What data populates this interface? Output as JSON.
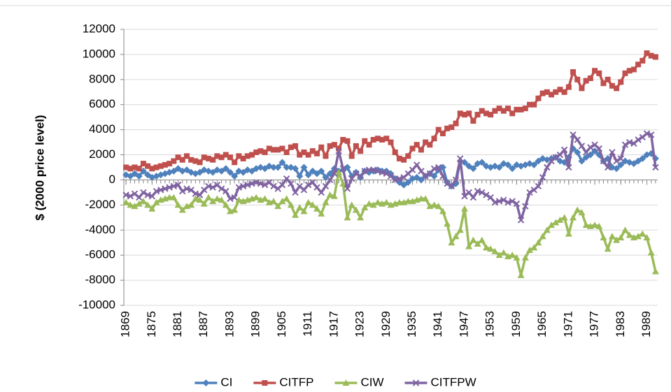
{
  "chart_data": {
    "type": "line",
    "y_label": "$ (2000 price level)",
    "x": [
      1869,
      1870,
      1871,
      1872,
      1873,
      1874,
      1875,
      1876,
      1877,
      1878,
      1879,
      1880,
      1881,
      1882,
      1883,
      1884,
      1885,
      1886,
      1887,
      1888,
      1889,
      1890,
      1891,
      1892,
      1893,
      1894,
      1895,
      1896,
      1897,
      1898,
      1899,
      1900,
      1901,
      1902,
      1903,
      1904,
      1905,
      1906,
      1907,
      1908,
      1909,
      1910,
      1911,
      1912,
      1913,
      1914,
      1915,
      1916,
      1917,
      1918,
      1919,
      1920,
      1921,
      1922,
      1923,
      1924,
      1925,
      1926,
      1927,
      1928,
      1929,
      1930,
      1931,
      1932,
      1933,
      1934,
      1935,
      1936,
      1937,
      1938,
      1939,
      1940,
      1941,
      1942,
      1943,
      1944,
      1945,
      1946,
      1947,
      1948,
      1949,
      1950,
      1951,
      1952,
      1953,
      1954,
      1955,
      1956,
      1957,
      1958,
      1959,
      1960,
      1961,
      1962,
      1963,
      1964,
      1965,
      1966,
      1967,
      1968,
      1969,
      1970,
      1971,
      1972,
      1973,
      1974,
      1975,
      1976,
      1977,
      1978,
      1979,
      1980,
      1981,
      1982,
      1983,
      1984,
      1985,
      1986,
      1987,
      1988,
      1989,
      1990,
      1991
    ],
    "xlim": [
      1868.5,
      1991.5
    ],
    "xticks": [
      1869,
      1875,
      1881,
      1887,
      1893,
      1899,
      1905,
      1911,
      1917,
      1923,
      1929,
      1935,
      1941,
      1947,
      1953,
      1959,
      1965,
      1971,
      1977,
      1983,
      1989
    ],
    "ylim": [
      -10000,
      12000
    ],
    "yticks": [
      -10000,
      -8000,
      -6000,
      -4000,
      -2000,
      0,
      2000,
      4000,
      6000,
      8000,
      10000,
      12000
    ],
    "grid": true,
    "legend": "bottom",
    "series": [
      {
        "name": "CI",
        "color": "#4f81bd",
        "marker": "diamond",
        "values": [
          400,
          300,
          500,
          300,
          700,
          400,
          200,
          300,
          400,
          500,
          600,
          700,
          900,
          700,
          800,
          600,
          500,
          600,
          800,
          700,
          600,
          800,
          700,
          900,
          600,
          300,
          700,
          600,
          800,
          700,
          900,
          1000,
          900,
          1100,
          1000,
          1000,
          1400,
          1000,
          1000,
          900,
          300,
          1000,
          400,
          700,
          500,
          700,
          200,
          500,
          900,
          700,
          800,
          1000,
          300,
          600,
          200,
          700,
          600,
          700,
          800,
          700,
          700,
          500,
          100,
          -200,
          -400,
          -200,
          100,
          200,
          0,
          300,
          500,
          300,
          800,
          1000,
          -200,
          -500,
          -300,
          1500,
          1400,
          1100,
          900,
          1300,
          1400,
          1100,
          1000,
          1100,
          1000,
          1300,
          1200,
          900,
          1200,
          1100,
          1200,
          1300,
          1200,
          1500,
          1700,
          1600,
          1700,
          1800,
          1500,
          1400,
          1800,
          2500,
          2200,
          1500,
          1800,
          2000,
          2300,
          2000,
          1500,
          1700,
          1000,
          900,
          1200,
          1500,
          1400,
          1300,
          1500,
          1700,
          2000,
          2100,
          1700
        ]
      },
      {
        "name": "CITFP",
        "color": "#c0504d",
        "marker": "square",
        "values": [
          1000,
          900,
          1000,
          900,
          1300,
          1100,
          900,
          1000,
          1100,
          1200,
          1300,
          1500,
          1800,
          1600,
          1900,
          1600,
          1500,
          1400,
          1800,
          1700,
          1600,
          1900,
          1800,
          2000,
          1800,
          1400,
          1900,
          1700,
          1900,
          2000,
          2200,
          2300,
          2200,
          2500,
          2400,
          2400,
          2500,
          2200,
          2600,
          2700,
          2000,
          2200,
          2000,
          2300,
          2100,
          2600,
          1900,
          2700,
          2800,
          2500,
          3200,
          3100,
          1900,
          2700,
          2300,
          3100,
          2800,
          3200,
          3300,
          3200,
          3300,
          3000,
          2200,
          1700,
          1600,
          1900,
          2500,
          2800,
          2400,
          3000,
          2800,
          3300,
          4000,
          3700,
          4100,
          4200,
          4500,
          5300,
          5200,
          5300,
          4700,
          5200,
          5500,
          5300,
          5200,
          5500,
          5700,
          5500,
          5700,
          5300,
          5600,
          5600,
          5700,
          6000,
          6000,
          6500,
          6900,
          7000,
          6800,
          7000,
          7200,
          7000,
          7400,
          8600,
          8000,
          7300,
          7900,
          8100,
          8700,
          8500,
          7700,
          8000,
          7500,
          7300,
          7800,
          8500,
          8700,
          8800,
          9200,
          9500,
          10100,
          9900,
          9800
        ]
      },
      {
        "name": "CIW",
        "color": "#9bbb59",
        "marker": "triangle",
        "values": [
          -1800,
          -2000,
          -2100,
          -1900,
          -1700,
          -2000,
          -2300,
          -1800,
          -1600,
          -1500,
          -1400,
          -1400,
          -2000,
          -2400,
          -2100,
          -2000,
          -1500,
          -1600,
          -1900,
          -1400,
          -1700,
          -1500,
          -1600,
          -2000,
          -2500,
          -2400,
          -1600,
          -1700,
          -1600,
          -1500,
          -1400,
          -1600,
          -1500,
          -1800,
          -1700,
          -2100,
          -1700,
          -1500,
          -2000,
          -2800,
          -2200,
          -2500,
          -1800,
          -2000,
          -2300,
          -2700,
          -1800,
          -1200,
          -1300,
          600,
          -300,
          -3000,
          -2000,
          -2400,
          -3000,
          -2200,
          -1900,
          -2000,
          -1800,
          -1900,
          -1800,
          -2000,
          -1900,
          -1800,
          -1800,
          -1700,
          -1700,
          -1600,
          -1500,
          -1500,
          -2100,
          -2000,
          -2100,
          -2500,
          -3500,
          -5000,
          -4500,
          -4000,
          -2300,
          -5300,
          -4800,
          -5100,
          -4800,
          -5400,
          -5500,
          -5700,
          -6000,
          -5800,
          -6100,
          -6000,
          -6200,
          -7600,
          -6200,
          -5600,
          -5400,
          -5000,
          -4500,
          -4000,
          -3600,
          -3400,
          -3200,
          -3000,
          -4300,
          -3000,
          -2400,
          -2600,
          -3600,
          -3700,
          -3600,
          -3700,
          -4600,
          -5500,
          -4500,
          -4800,
          -4600,
          -4000,
          -4400,
          -4600,
          -4500,
          -4300,
          -4600,
          -5800,
          -7300
        ]
      },
      {
        "name": "CITFPW",
        "color": "#8064a2",
        "marker": "x",
        "values": [
          -1200,
          -1300,
          -1100,
          -1400,
          -1000,
          -1200,
          -1300,
          -900,
          -800,
          -700,
          -600,
          -500,
          -400,
          -900,
          -700,
          -800,
          -1100,
          -1200,
          -800,
          -500,
          -600,
          -400,
          -700,
          -900,
          -1500,
          -1400,
          -600,
          -500,
          -400,
          -300,
          -200,
          -300,
          -400,
          -200,
          -500,
          -700,
          -400,
          100,
          -300,
          -1000,
          -500,
          -800,
          -400,
          -200,
          -600,
          -1000,
          -500,
          0,
          500,
          2300,
          900,
          -700,
          100,
          500,
          300,
          700,
          800,
          800,
          700,
          600,
          500,
          300,
          0,
          100,
          200,
          500,
          800,
          1200,
          700,
          300,
          500,
          900,
          1000,
          300,
          -300,
          -500,
          0,
          1700,
          -1300,
          -1000,
          -1400,
          -900,
          -1000,
          -1200,
          -1400,
          -1800,
          -1700,
          -1600,
          -1800,
          -1700,
          -1900,
          -3200,
          -2100,
          -1000,
          -800,
          -500,
          200,
          1000,
          1500,
          1800,
          2000,
          2400,
          1000,
          3600,
          3200,
          2700,
          2200,
          2600,
          2800,
          2500,
          1500,
          1000,
          2200,
          1500,
          1700,
          2800,
          3000,
          2900,
          3200,
          3400,
          3700,
          3600,
          1000
        ]
      }
    ]
  }
}
